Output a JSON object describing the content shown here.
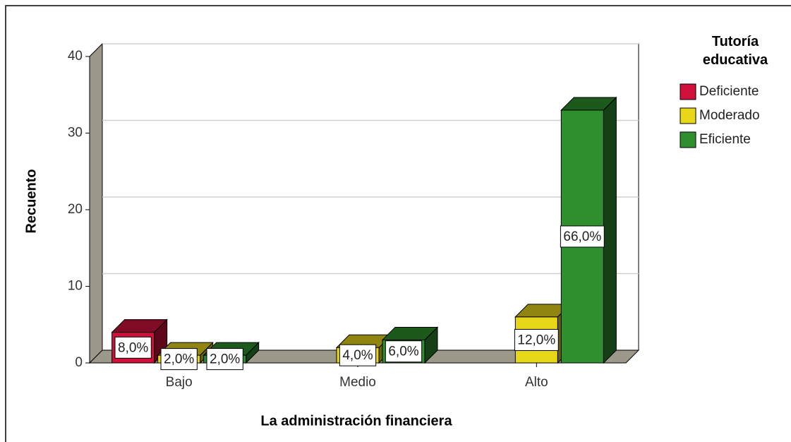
{
  "chart_data": {
    "type": "bar3d",
    "x_label": "La administración financiera",
    "y_label": "Recuento",
    "legend_title": "Tutoría educativa",
    "categories": [
      "Bajo",
      "Medio",
      "Alto"
    ],
    "series": [
      {
        "name": "Deficiente",
        "color": "#d0103a",
        "values": [
          4,
          null,
          null
        ],
        "percents": [
          8.0,
          null,
          null
        ],
        "value_labels": [
          "8,0%",
          null,
          null
        ]
      },
      {
        "name": "Moderado",
        "color": "#e8d619",
        "values": [
          1,
          2,
          6
        ],
        "percents": [
          2.0,
          4.0,
          12.0
        ],
        "value_labels": [
          "2,0%",
          "4,0%",
          "12,0%"
        ]
      },
      {
        "name": "Eficiente",
        "color": "#2f8f2f",
        "values": [
          1,
          3,
          33
        ],
        "percents": [
          2.0,
          6.0,
          66.0
        ],
        "value_labels": [
          "2,0%",
          "6,0%",
          "66,0%"
        ]
      }
    ],
    "ylim": [
      0,
      40
    ],
    "yticks": [
      0,
      10,
      20,
      30,
      40
    ],
    "grid": true,
    "legend": "right"
  }
}
